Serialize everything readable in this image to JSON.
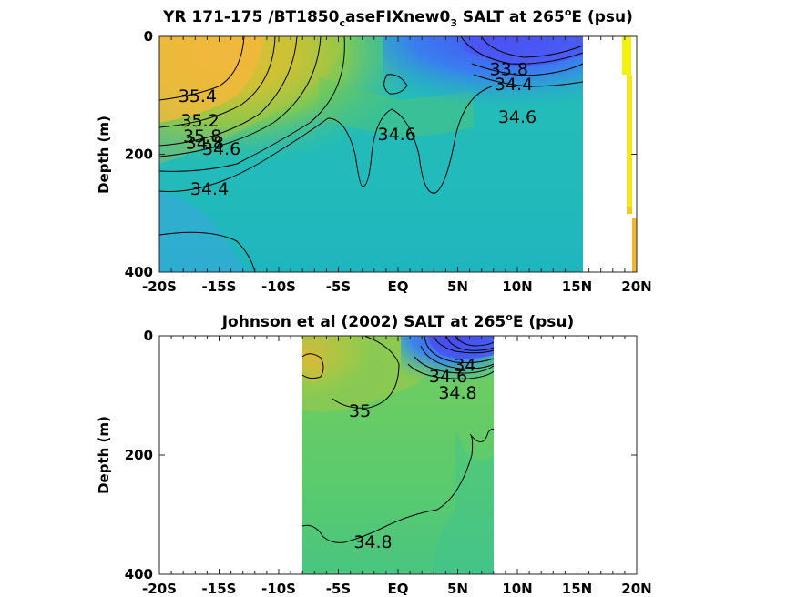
{
  "chart_data": [
    {
      "type": "heatmap",
      "title": "YR 171-175 /BT1850caseFIXnew03 SALT at 265°E (psu)",
      "title_parts": {
        "pre": "YR 171-175 /BT1850",
        "sub1": "c",
        "mid": "aseFIXnew0",
        "sub2": "3",
        "post": " SALT at 265",
        "sup": "o",
        "end": "E (psu)"
      },
      "ylabel": "Depth (m)",
      "xlim": [
        -20,
        20
      ],
      "ylim": [
        0,
        400
      ],
      "y_reversed": true,
      "x_ticks": [
        -20,
        -15,
        -10,
        -5,
        0,
        5,
        10,
        15,
        20
      ],
      "x_tick_labels": [
        "-20S",
        "-15S",
        "-10S",
        "-5S",
        "EQ",
        "5N",
        "10N",
        "15N",
        "20N"
      ],
      "y_ticks": [
        0,
        200,
        400
      ],
      "y_tick_labels": [
        "0",
        "200",
        "400"
      ],
      "data_extent_x": [
        -20,
        16
      ],
      "contour_labels": [
        {
          "text": "35.4",
          "x": -16.8,
          "y": 100
        },
        {
          "text": "35.2",
          "x": -16.6,
          "y": 142
        },
        {
          "text": "35.8",
          "x": -16.4,
          "y": 168
        },
        {
          "text": "34.8",
          "x": -16.2,
          "y": 180
        },
        {
          "text": "34.6",
          "x": -14.8,
          "y": 190
        },
        {
          "text": "34.4",
          "x": -15.8,
          "y": 258
        },
        {
          "text": "34.6",
          "x": -0.1,
          "y": 165
        },
        {
          "text": "33.8",
          "x": 9.3,
          "y": 55
        },
        {
          "text": "34.4",
          "x": 9.7,
          "y": 80
        },
        {
          "text": "34.6",
          "x": 10.0,
          "y": 136
        }
      ]
    },
    {
      "type": "heatmap",
      "title": "Johnson et al (2002) SALT at 265°E (psu)",
      "title_parts": {
        "pre": "Johnson et al (2002) SALT at 265",
        "sup": "o",
        "end": "E (psu)"
      },
      "ylabel": "Depth (m)",
      "xlim": [
        -20,
        20
      ],
      "ylim": [
        0,
        400
      ],
      "y_reversed": true,
      "x_ticks": [
        -20,
        -15,
        -10,
        -5,
        0,
        5,
        10,
        15,
        20
      ],
      "x_tick_labels": [
        "-20S",
        "-15S",
        "-10S",
        "-5S",
        "EQ",
        "5N",
        "10N",
        "15N",
        "20N"
      ],
      "y_ticks": [
        0,
        200,
        400
      ],
      "y_tick_labels": [
        "0",
        "200",
        "400"
      ],
      "data_extent_x": [
        -8,
        8
      ],
      "contour_labels": [
        {
          "text": "34",
          "x": 5.6,
          "y": 48
        },
        {
          "text": "34.6",
          "x": 4.2,
          "y": 67
        },
        {
          "text": "34.8",
          "x": 5.0,
          "y": 95
        },
        {
          "text": "35",
          "x": -3.2,
          "y": 125
        },
        {
          "text": "34.8",
          "x": -2.1,
          "y": 345
        }
      ]
    }
  ]
}
